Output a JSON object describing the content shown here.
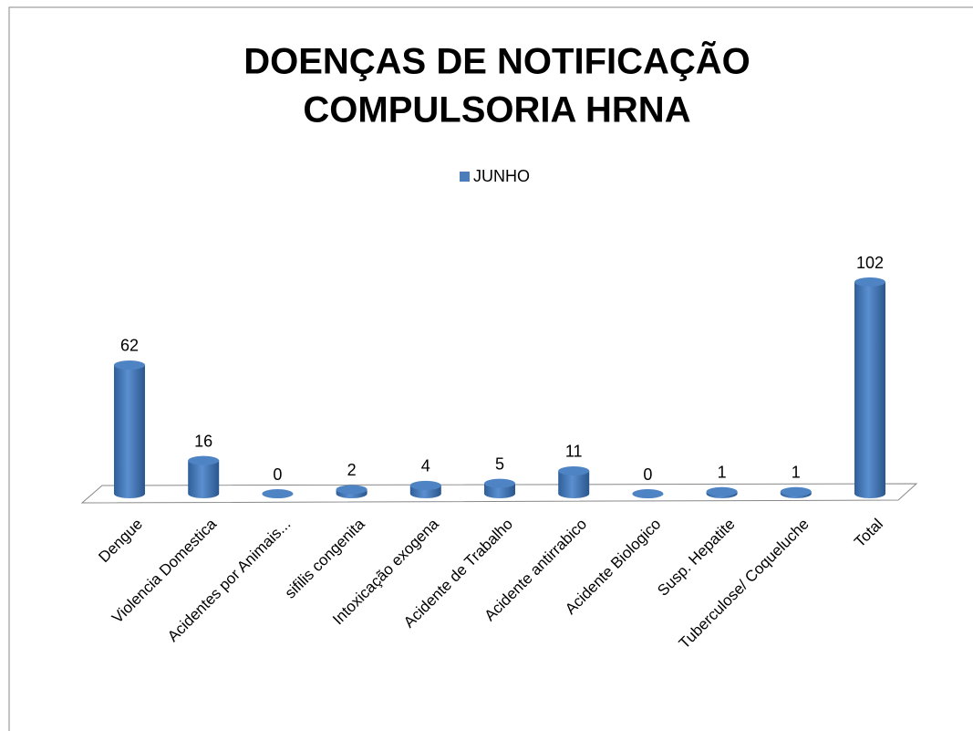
{
  "chart_data": {
    "type": "bar3d",
    "title": [
      "DOENÇAS DE NOTIFICAÇÃO",
      "COMPULSORIA HRNA"
    ],
    "categories": [
      "Dengue",
      "Violencia Domestica",
      "Acidentes por Animais...",
      "sifilis congenita",
      "Intoxicação exogena",
      "Acidente de Trabalho",
      "Acidente antirrabico",
      "Acidente Biologico",
      "Susp. Hepatite",
      "Tuberculose/ Coqueluche",
      "Total"
    ],
    "series": [
      {
        "name": "JUNHO",
        "color": "#4a7ebb",
        "values": [
          62,
          16,
          0,
          2,
          4,
          5,
          11,
          0,
          1,
          1,
          102
        ]
      }
    ]
  }
}
